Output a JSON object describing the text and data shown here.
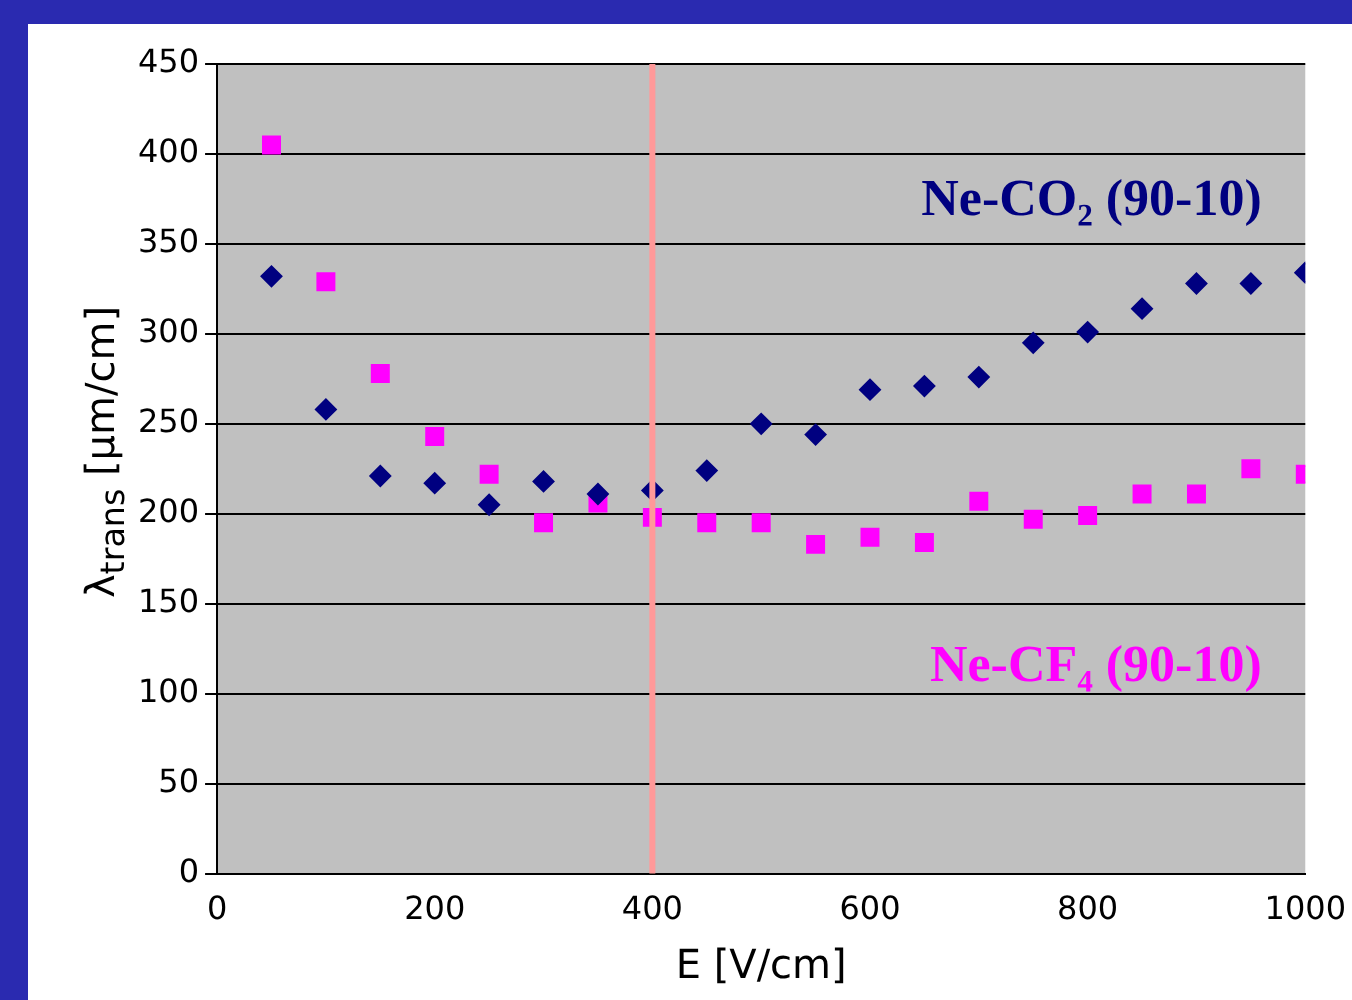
{
  "chart_data": {
    "type": "scatter",
    "xlabel": "E [V/cm]",
    "ylabel": "λ$_{trans}$ [µm/cm]",
    "x": [
      50,
      100,
      150,
      200,
      250,
      300,
      350,
      400,
      450,
      500,
      550,
      600,
      650,
      700,
      750,
      800,
      850,
      900,
      950,
      1000
    ],
    "series": [
      {
        "name": "Ne-CO₂ (90-10)",
        "color": "#000080",
        "marker": "diamond",
        "values": [
          332,
          258,
          221,
          217,
          205,
          218,
          211,
          213,
          224,
          250,
          244,
          269,
          271,
          276,
          295,
          301,
          314,
          328,
          328,
          334
        ]
      },
      {
        "name": "Ne-CF₄ (90-10)",
        "color": "#ff00ff",
        "marker": "square",
        "values": [
          405,
          329,
          278,
          243,
          222,
          195,
          206,
          198,
          195,
          195,
          183,
          187,
          184,
          207,
          197,
          199,
          211,
          211,
          225,
          222
        ]
      }
    ],
    "xlim": [
      0,
      1000
    ],
    "xticks": [
      0,
      200,
      400,
      600,
      800,
      1000
    ],
    "ylim": [
      0,
      450
    ],
    "yticks": [
      0,
      50,
      100,
      150,
      200,
      250,
      300,
      350,
      400,
      450
    ],
    "grid": "y",
    "legend": false,
    "ref_lines": [
      {
        "axis": "x",
        "value": 400,
        "color": "#ff9999"
      }
    ]
  }
}
